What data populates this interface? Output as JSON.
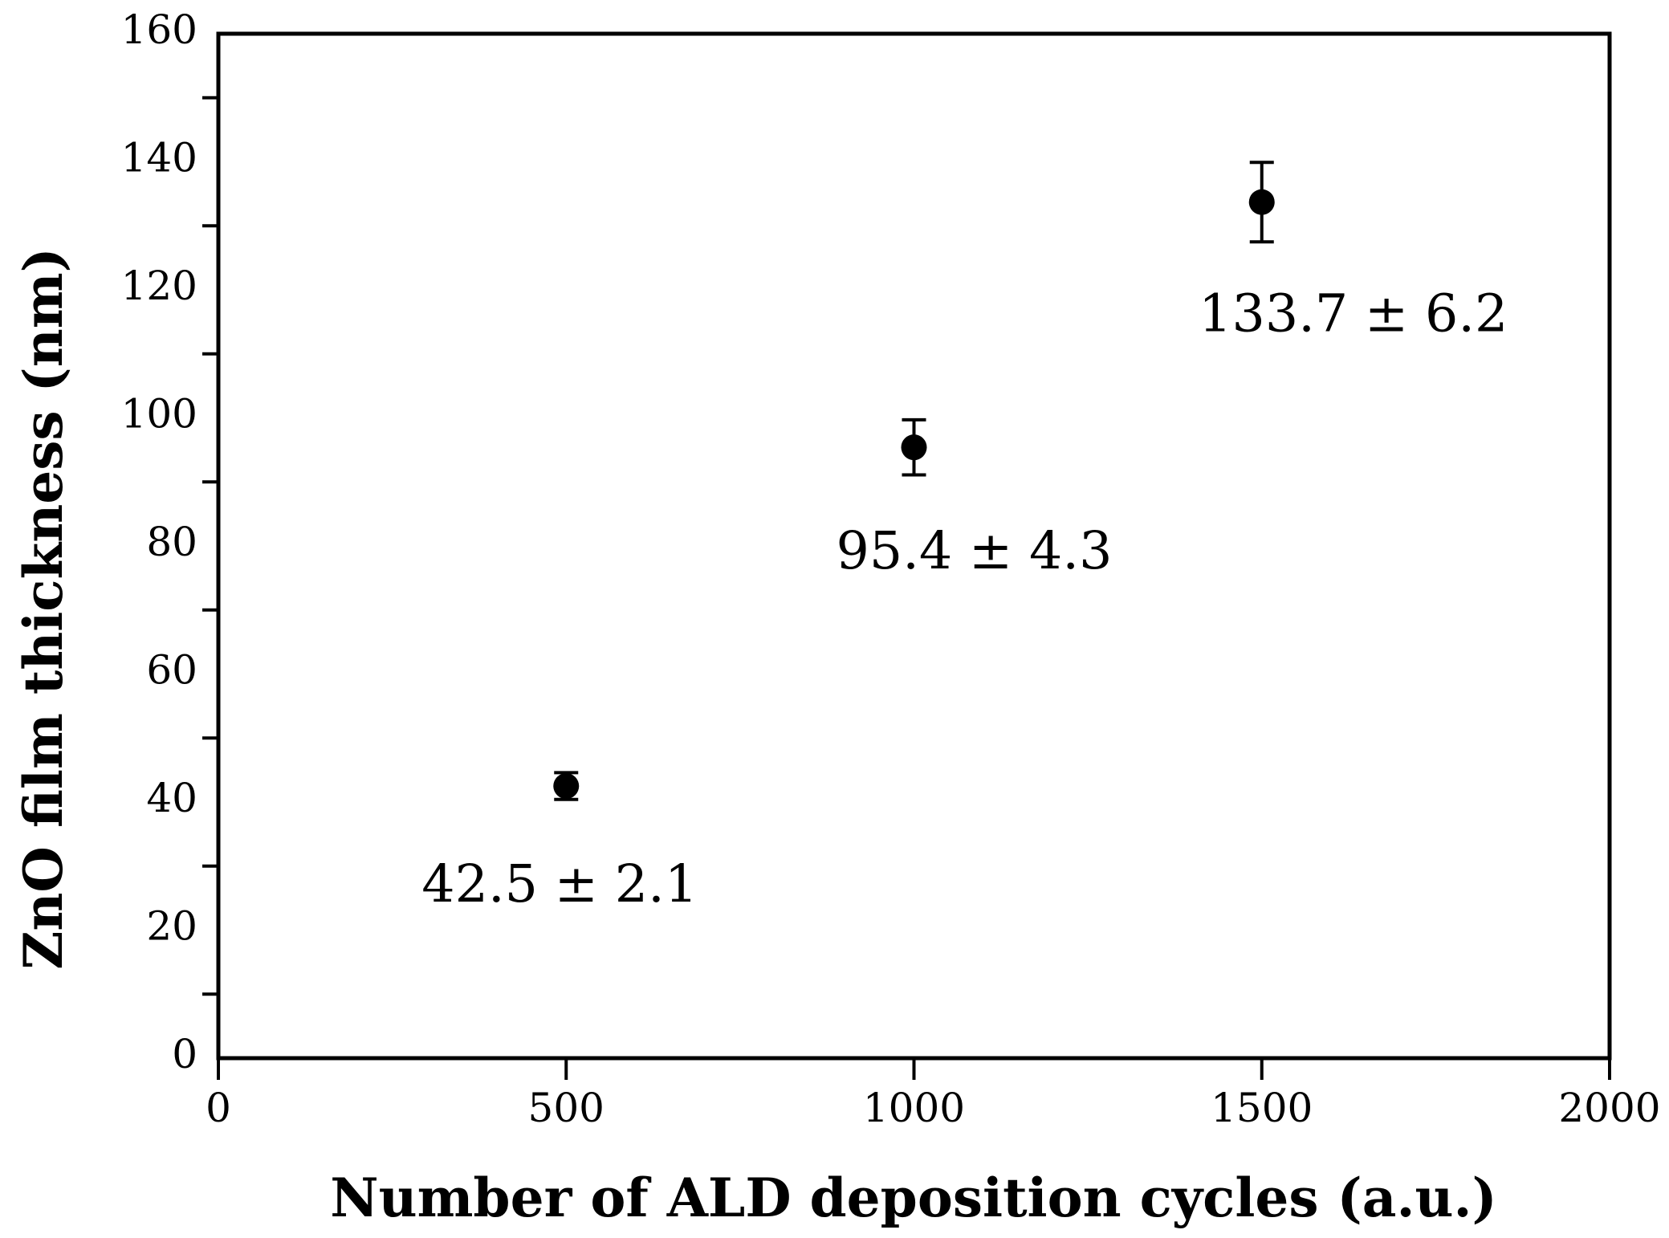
{
  "chart_data": {
    "type": "scatter",
    "title": "",
    "xlabel": "Number of ALD deposition cycles (a.u.)",
    "ylabel": "ZnO film thickness (nm)",
    "xlim": [
      0,
      2000
    ],
    "ylim": [
      0,
      160
    ],
    "x_ticks": [
      0,
      500,
      1000,
      1500,
      2000
    ],
    "y_tick_labels": [
      0,
      20,
      40,
      60,
      80,
      100,
      120,
      140,
      160
    ],
    "y_minor_ticks": [
      10,
      30,
      50,
      70,
      90,
      110,
      130,
      150
    ],
    "grid": false,
    "legend": "none",
    "marker": "filled-circle",
    "colors": {
      "foreground": "#000000",
      "background": "#ffffff"
    },
    "series": [
      {
        "name": "ZnO film thickness",
        "points": [
          {
            "x": 500,
            "y": 42.5,
            "yerr": 2.1,
            "label": "42.5 ± 2.1"
          },
          {
            "x": 1000,
            "y": 95.4,
            "yerr": 4.3,
            "label": "95.4 ± 4.3"
          },
          {
            "x": 1500,
            "y": 133.7,
            "yerr": 6.2,
            "label": "133.7 ± 6.2"
          }
        ]
      }
    ]
  }
}
